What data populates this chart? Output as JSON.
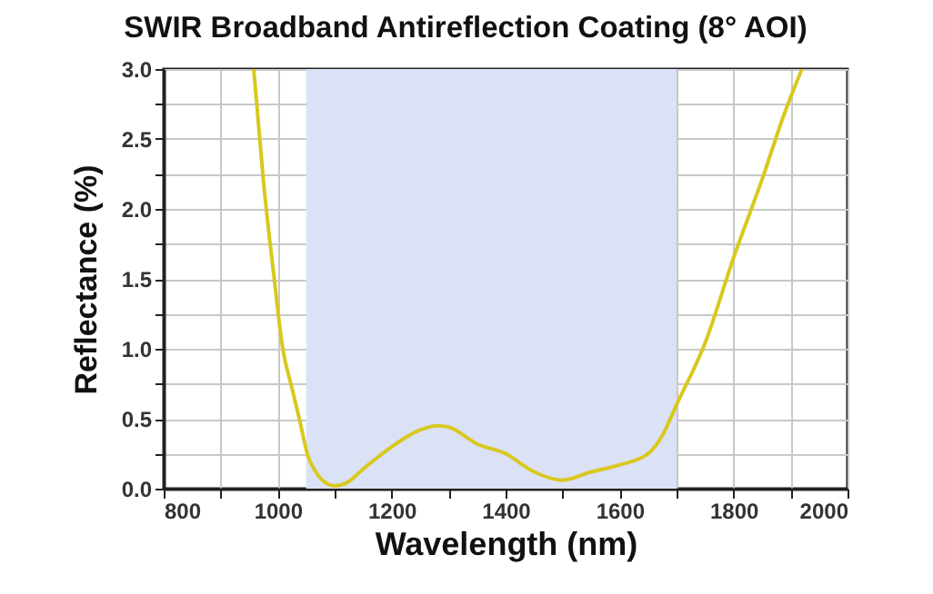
{
  "chart_data": {
    "type": "line",
    "title": "SWIR Broadband Antireflection Coating (8° AOI)",
    "xlabel": "Wavelength (nm)",
    "ylabel": "Reflectance (%)",
    "x": [
      958,
      975,
      994,
      1009,
      1025,
      1038,
      1052,
      1070,
      1085,
      1100,
      1120,
      1150,
      1200,
      1250,
      1280,
      1300,
      1350,
      1400,
      1450,
      1500,
      1550,
      1600,
      1650,
      1675,
      1700,
      1750,
      1800,
      1850,
      1890,
      1920
    ],
    "series": [
      {
        "color": "#d9c81e",
        "values": [
          3.0,
          2.2,
          1.5,
          1.0,
          0.72,
          0.5,
          0.25,
          0.1,
          0.04,
          0.02,
          0.04,
          0.14,
          0.3,
          0.42,
          0.45,
          0.44,
          0.32,
          0.25,
          0.12,
          0.06,
          0.12,
          0.17,
          0.25,
          0.38,
          0.6,
          1.04,
          1.65,
          2.21,
          2.69,
          3.0
        ]
      }
    ],
    "xlim": [
      800,
      2000
    ],
    "ylim": [
      0,
      3
    ],
    "xticks": [
      800,
      {
        "value": 900,
        "label": null
      },
      1000,
      {
        "value": 1100,
        "label": null
      },
      1200,
      {
        "value": 1300,
        "label": null
      },
      1400,
      {
        "value": 1500,
        "label": null
      },
      1600,
      {
        "value": 1700,
        "label": null
      },
      1800,
      {
        "value": 1900,
        "label": null
      },
      2000
    ],
    "yticks": [
      {
        "value": 0,
        "label": "0.0"
      },
      {
        "value": 0.25,
        "label": null
      },
      0.5,
      {
        "value": 0.75,
        "label": null
      },
      {
        "value": 1,
        "label": "1.0"
      },
      {
        "value": 1.25,
        "label": null
      },
      1.5,
      {
        "value": 1.75,
        "label": null
      },
      {
        "value": 2,
        "label": "2.0"
      },
      {
        "value": 2.25,
        "label": null
      },
      2.5,
      {
        "value": 2.75,
        "label": null
      },
      {
        "value": 3,
        "label": "3.0"
      }
    ],
    "bands": [
      {
        "axis": "x",
        "from": 1050,
        "to": 1700,
        "color": "#dbe2f6"
      }
    ],
    "grid": true,
    "marker": "none",
    "line_style": "solid"
  }
}
